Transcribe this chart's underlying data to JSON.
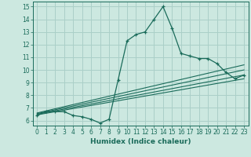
{
  "xlabel": "Humidex (Indice chaleur)",
  "bg_color": "#cce8e0",
  "grid_color": "#aacfc8",
  "line_color": "#1a6b5a",
  "xlim": [
    -0.5,
    23.5
  ],
  "ylim": [
    5.6,
    15.4
  ],
  "xticks": [
    0,
    1,
    2,
    3,
    4,
    5,
    6,
    7,
    8,
    9,
    10,
    11,
    12,
    13,
    14,
    15,
    16,
    17,
    18,
    19,
    20,
    21,
    22,
    23
  ],
  "yticks": [
    6,
    7,
    8,
    9,
    10,
    11,
    12,
    13,
    14,
    15
  ],
  "main_x": [
    0,
    1,
    2,
    3,
    4,
    5,
    6,
    7,
    8,
    9,
    10,
    11,
    12,
    13,
    14,
    15,
    16,
    17,
    18,
    19,
    20,
    21,
    22,
    23
  ],
  "main_y": [
    6.4,
    6.7,
    6.7,
    6.7,
    6.4,
    6.3,
    6.1,
    5.8,
    6.1,
    9.2,
    12.3,
    12.8,
    13.0,
    14.0,
    15.0,
    13.3,
    11.3,
    11.1,
    10.9,
    10.9,
    10.5,
    9.8,
    9.3,
    9.6
  ],
  "reg_lines": [
    {
      "x": [
        0,
        23
      ],
      "y": [
        6.45,
        9.3
      ]
    },
    {
      "x": [
        0,
        23
      ],
      "y": [
        6.5,
        9.6
      ]
    },
    {
      "x": [
        0,
        23
      ],
      "y": [
        6.55,
        10.0
      ]
    },
    {
      "x": [
        0,
        23
      ],
      "y": [
        6.6,
        10.4
      ]
    }
  ],
  "tick_fontsize": 5.5,
  "xlabel_fontsize": 6.5,
  "xlabel_fontweight": "bold"
}
